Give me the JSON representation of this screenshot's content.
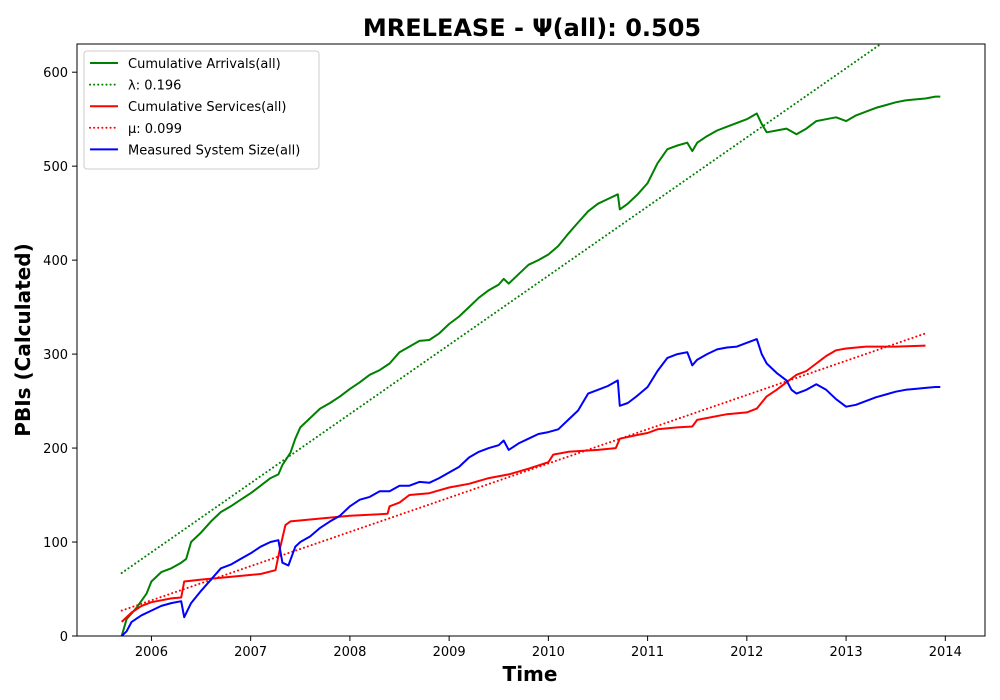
{
  "chart_data": {
    "type": "line",
    "title": "MRELEASE -  Ψ(all): 0.505",
    "xlabel": "Time",
    "ylabel": "PBIs (Calculated)",
    "xlim": [
      2005.25,
      2014.4
    ],
    "ylim": [
      0,
      630
    ],
    "x_ticks": [
      "2006",
      "2007",
      "2008",
      "2009",
      "2010",
      "2011",
      "2012",
      "2013",
      "2014"
    ],
    "y_ticks": [
      "0",
      "100",
      "200",
      "300",
      "400",
      "500",
      "600"
    ],
    "grid": false,
    "legend_position": "upper-left",
    "series": [
      {
        "name": "Cumulative Arrivals(all)",
        "color": "#008000",
        "style": "solid",
        "points": [
          [
            2005.7,
            0
          ],
          [
            2005.75,
            18
          ],
          [
            2005.85,
            30
          ],
          [
            2005.95,
            45
          ],
          [
            2006.0,
            58
          ],
          [
            2006.1,
            68
          ],
          [
            2006.2,
            72
          ],
          [
            2006.3,
            78
          ],
          [
            2006.35,
            82
          ],
          [
            2006.4,
            100
          ],
          [
            2006.5,
            110
          ],
          [
            2006.6,
            122
          ],
          [
            2006.7,
            132
          ],
          [
            2006.8,
            138
          ],
          [
            2006.9,
            145
          ],
          [
            2007.0,
            152
          ],
          [
            2007.1,
            160
          ],
          [
            2007.2,
            168
          ],
          [
            2007.28,
            172
          ],
          [
            2007.32,
            182
          ],
          [
            2007.4,
            195
          ],
          [
            2007.45,
            210
          ],
          [
            2007.5,
            222
          ],
          [
            2007.6,
            232
          ],
          [
            2007.7,
            242
          ],
          [
            2007.8,
            248
          ],
          [
            2007.9,
            255
          ],
          [
            2008.0,
            263
          ],
          [
            2008.1,
            270
          ],
          [
            2008.2,
            278
          ],
          [
            2008.3,
            283
          ],
          [
            2008.4,
            290
          ],
          [
            2008.5,
            302
          ],
          [
            2008.6,
            308
          ],
          [
            2008.7,
            314
          ],
          [
            2008.8,
            315
          ],
          [
            2008.9,
            322
          ],
          [
            2009.0,
            332
          ],
          [
            2009.1,
            340
          ],
          [
            2009.2,
            350
          ],
          [
            2009.3,
            360
          ],
          [
            2009.4,
            368
          ],
          [
            2009.5,
            374
          ],
          [
            2009.55,
            380
          ],
          [
            2009.6,
            375
          ],
          [
            2009.7,
            385
          ],
          [
            2009.8,
            395
          ],
          [
            2009.9,
            400
          ],
          [
            2010.0,
            406
          ],
          [
            2010.1,
            415
          ],
          [
            2010.2,
            428
          ],
          [
            2010.3,
            440
          ],
          [
            2010.4,
            452
          ],
          [
            2010.5,
            460
          ],
          [
            2010.6,
            465
          ],
          [
            2010.7,
            470
          ],
          [
            2010.72,
            454
          ],
          [
            2010.8,
            460
          ],
          [
            2010.9,
            470
          ],
          [
            2011.0,
            482
          ],
          [
            2011.1,
            503
          ],
          [
            2011.2,
            518
          ],
          [
            2011.3,
            522
          ],
          [
            2011.4,
            525
          ],
          [
            2011.45,
            516
          ],
          [
            2011.5,
            525
          ],
          [
            2011.6,
            532
          ],
          [
            2011.7,
            538
          ],
          [
            2011.8,
            542
          ],
          [
            2011.9,
            546
          ],
          [
            2012.0,
            550
          ],
          [
            2012.1,
            556
          ],
          [
            2012.15,
            545
          ],
          [
            2012.2,
            536
          ],
          [
            2012.3,
            538
          ],
          [
            2012.4,
            540
          ],
          [
            2012.5,
            534
          ],
          [
            2012.6,
            540
          ],
          [
            2012.7,
            548
          ],
          [
            2012.8,
            550
          ],
          [
            2012.9,
            552
          ],
          [
            2013.0,
            548
          ],
          [
            2013.1,
            554
          ],
          [
            2013.2,
            558
          ],
          [
            2013.3,
            562
          ],
          [
            2013.4,
            565
          ],
          [
            2013.5,
            568
          ],
          [
            2013.6,
            570
          ],
          [
            2013.7,
            571
          ],
          [
            2013.8,
            572
          ],
          [
            2013.9,
            574
          ],
          [
            2013.95,
            574
          ]
        ]
      },
      {
        "name": "λ: 0.196",
        "color": "#008000",
        "style": "dotted",
        "points": [
          [
            2005.7,
            67
          ],
          [
            2013.35,
            630
          ]
        ]
      },
      {
        "name": "Cumulative Services(all)",
        "color": "#ff0000",
        "style": "solid",
        "points": [
          [
            2005.7,
            15
          ],
          [
            2005.8,
            25
          ],
          [
            2005.9,
            32
          ],
          [
            2006.0,
            36
          ],
          [
            2006.1,
            38
          ],
          [
            2006.2,
            40
          ],
          [
            2006.3,
            41
          ],
          [
            2006.33,
            58
          ],
          [
            2006.5,
            60
          ],
          [
            2006.7,
            62
          ],
          [
            2006.9,
            64
          ],
          [
            2007.1,
            66
          ],
          [
            2007.25,
            70
          ],
          [
            2007.3,
            95
          ],
          [
            2007.35,
            118
          ],
          [
            2007.4,
            122
          ],
          [
            2007.6,
            124
          ],
          [
            2007.8,
            126
          ],
          [
            2008.0,
            128
          ],
          [
            2008.2,
            129
          ],
          [
            2008.38,
            130
          ],
          [
            2008.4,
            138
          ],
          [
            2008.5,
            142
          ],
          [
            2008.6,
            150
          ],
          [
            2008.8,
            152
          ],
          [
            2008.9,
            155
          ],
          [
            2009.0,
            158
          ],
          [
            2009.2,
            162
          ],
          [
            2009.4,
            168
          ],
          [
            2009.6,
            172
          ],
          [
            2009.8,
            178
          ],
          [
            2010.0,
            185
          ],
          [
            2010.05,
            193
          ],
          [
            2010.2,
            196
          ],
          [
            2010.5,
            198
          ],
          [
            2010.68,
            200
          ],
          [
            2010.72,
            210
          ],
          [
            2010.9,
            214
          ],
          [
            2011.0,
            216
          ],
          [
            2011.1,
            220
          ],
          [
            2011.3,
            222
          ],
          [
            2011.45,
            223
          ],
          [
            2011.5,
            230
          ],
          [
            2011.8,
            236
          ],
          [
            2012.0,
            238
          ],
          [
            2012.1,
            242
          ],
          [
            2012.2,
            255
          ],
          [
            2012.3,
            262
          ],
          [
            2012.4,
            270
          ],
          [
            2012.5,
            278
          ],
          [
            2012.6,
            282
          ],
          [
            2012.7,
            290
          ],
          [
            2012.75,
            294
          ],
          [
            2012.8,
            298
          ],
          [
            2012.9,
            304
          ],
          [
            2013.0,
            306
          ],
          [
            2013.2,
            308
          ],
          [
            2013.5,
            308
          ],
          [
            2013.8,
            309
          ]
        ]
      },
      {
        "name": "μ: 0.099",
        "color": "#ff0000",
        "style": "dotted",
        "points": [
          [
            2005.7,
            27
          ],
          [
            2013.8,
            322
          ]
        ]
      },
      {
        "name": "Measured System Size(all)",
        "color": "#0000ff",
        "style": "solid",
        "points": [
          [
            2005.7,
            0
          ],
          [
            2005.75,
            5
          ],
          [
            2005.8,
            15
          ],
          [
            2005.9,
            22
          ],
          [
            2006.0,
            27
          ],
          [
            2006.1,
            32
          ],
          [
            2006.2,
            35
          ],
          [
            2006.3,
            37
          ],
          [
            2006.33,
            20
          ],
          [
            2006.4,
            35
          ],
          [
            2006.5,
            48
          ],
          [
            2006.6,
            60
          ],
          [
            2006.7,
            72
          ],
          [
            2006.8,
            76
          ],
          [
            2006.9,
            82
          ],
          [
            2007.0,
            88
          ],
          [
            2007.1,
            95
          ],
          [
            2007.2,
            100
          ],
          [
            2007.28,
            102
          ],
          [
            2007.32,
            78
          ],
          [
            2007.38,
            75
          ],
          [
            2007.45,
            95
          ],
          [
            2007.5,
            100
          ],
          [
            2007.6,
            106
          ],
          [
            2007.7,
            115
          ],
          [
            2007.8,
            122
          ],
          [
            2007.9,
            128
          ],
          [
            2008.0,
            138
          ],
          [
            2008.1,
            145
          ],
          [
            2008.2,
            148
          ],
          [
            2008.3,
            154
          ],
          [
            2008.4,
            154
          ],
          [
            2008.5,
            160
          ],
          [
            2008.6,
            160
          ],
          [
            2008.7,
            164
          ],
          [
            2008.8,
            163
          ],
          [
            2008.9,
            168
          ],
          [
            2009.0,
            174
          ],
          [
            2009.1,
            180
          ],
          [
            2009.2,
            190
          ],
          [
            2009.3,
            196
          ],
          [
            2009.4,
            200
          ],
          [
            2009.5,
            203
          ],
          [
            2009.55,
            208
          ],
          [
            2009.6,
            198
          ],
          [
            2009.7,
            205
          ],
          [
            2009.8,
            210
          ],
          [
            2009.9,
            215
          ],
          [
            2010.0,
            217
          ],
          [
            2010.1,
            220
          ],
          [
            2010.2,
            230
          ],
          [
            2010.3,
            240
          ],
          [
            2010.4,
            258
          ],
          [
            2010.5,
            262
          ],
          [
            2010.6,
            266
          ],
          [
            2010.7,
            272
          ],
          [
            2010.72,
            245
          ],
          [
            2010.8,
            248
          ],
          [
            2010.9,
            256
          ],
          [
            2011.0,
            265
          ],
          [
            2011.1,
            282
          ],
          [
            2011.2,
            296
          ],
          [
            2011.3,
            300
          ],
          [
            2011.4,
            302
          ],
          [
            2011.45,
            288
          ],
          [
            2011.5,
            294
          ],
          [
            2011.6,
            300
          ],
          [
            2011.7,
            305
          ],
          [
            2011.8,
            307
          ],
          [
            2011.9,
            308
          ],
          [
            2012.0,
            312
          ],
          [
            2012.1,
            316
          ],
          [
            2012.15,
            300
          ],
          [
            2012.2,
            290
          ],
          [
            2012.3,
            280
          ],
          [
            2012.4,
            272
          ],
          [
            2012.45,
            262
          ],
          [
            2012.5,
            258
          ],
          [
            2012.6,
            262
          ],
          [
            2012.7,
            268
          ],
          [
            2012.8,
            262
          ],
          [
            2012.9,
            252
          ],
          [
            2013.0,
            244
          ],
          [
            2013.1,
            246
          ],
          [
            2013.2,
            250
          ],
          [
            2013.3,
            254
          ],
          [
            2013.4,
            257
          ],
          [
            2013.5,
            260
          ],
          [
            2013.6,
            262
          ],
          [
            2013.7,
            263
          ],
          [
            2013.8,
            264
          ],
          [
            2013.9,
            265
          ],
          [
            2013.95,
            265
          ]
        ]
      }
    ]
  }
}
